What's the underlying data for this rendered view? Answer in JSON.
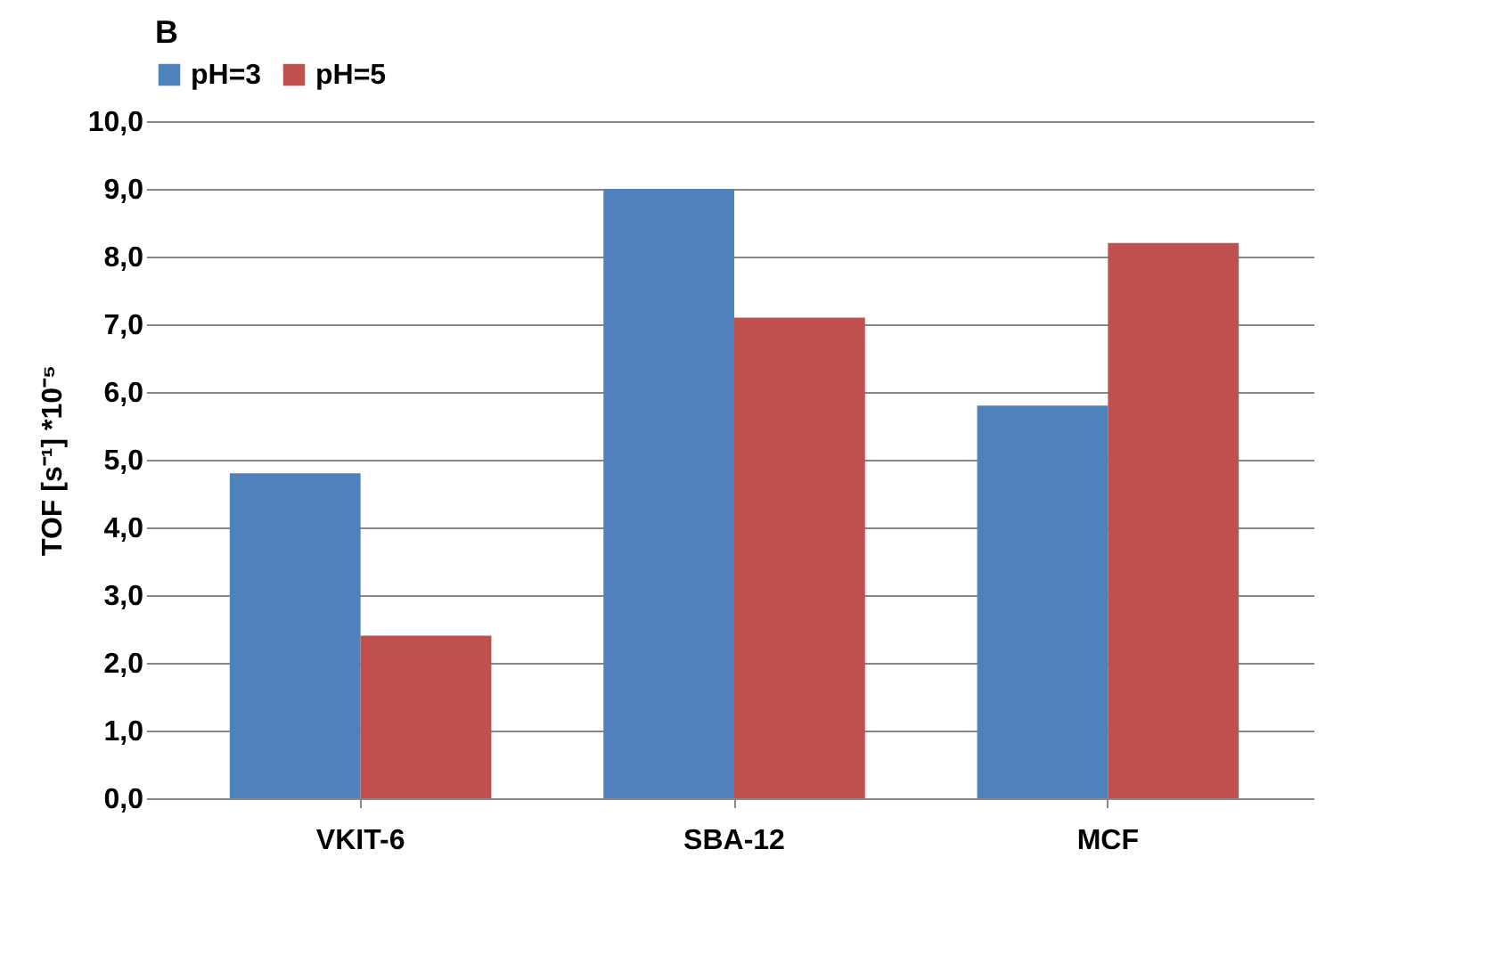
{
  "chart_data": {
    "type": "bar",
    "title": "B",
    "ylabel": "TOF [s⁻¹] *10⁻⁵",
    "categories": [
      "VKIT-6",
      "SBA-12",
      "MCF"
    ],
    "series": [
      {
        "name": "pH=3",
        "color": "#4f81bd",
        "values": [
          4.8,
          9.0,
          5.8
        ]
      },
      {
        "name": "pH=5",
        "color": "#c0504d",
        "values": [
          2.4,
          7.1,
          8.2
        ]
      }
    ],
    "ylim": [
      0,
      10
    ],
    "yticks": [
      {
        "value": 0,
        "label": "0,0"
      },
      {
        "value": 1,
        "label": "1,0"
      },
      {
        "value": 2,
        "label": "2,0"
      },
      {
        "value": 3,
        "label": "3,0"
      },
      {
        "value": 4,
        "label": "4,0"
      },
      {
        "value": 5,
        "label": "5,0"
      },
      {
        "value": 6,
        "label": "6,0"
      },
      {
        "value": 7,
        "label": "7,0"
      },
      {
        "value": 8,
        "label": "8,0"
      },
      {
        "value": 9,
        "label": "9,0"
      },
      {
        "value": 10,
        "label": "10,0"
      }
    ],
    "grid": "y",
    "legend": "top"
  }
}
